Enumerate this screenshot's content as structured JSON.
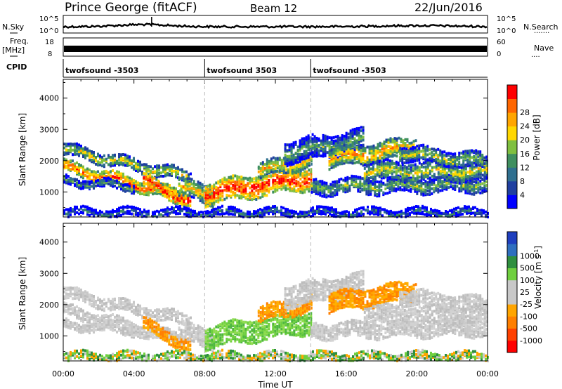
{
  "header": {
    "station": "Prince George (fitACF)",
    "beam": "Beam 12",
    "date": "22/Jun/2016"
  },
  "strip_labels": {
    "nsky": "N.Sky",
    "nsky_ticks": [
      "10^5",
      "10^0"
    ],
    "nsearch": "N.Search",
    "nsearch_ticks": [
      "10^5",
      "10^0"
    ],
    "freq": "Freq.",
    "freq_unit": "[MHz]",
    "freq_ticks": [
      "18",
      "8"
    ],
    "nave": "Nave",
    "nave_ticks": [
      "60",
      "0"
    ],
    "cpid": "CPID"
  },
  "cpid_segments": [
    {
      "label": "twofsound -3503",
      "start_hr": 0
    },
    {
      "label": "twofsound 3503",
      "start_hr": 8
    },
    {
      "label": "twofsound -3503",
      "start_hr": 14
    }
  ],
  "chart_data": [
    {
      "type": "heatmap",
      "name": "power",
      "ylabel": "Slant Range [km]",
      "xlabel": "Time UT",
      "x_ticks": [
        "00:00",
        "04:00",
        "08:00",
        "12:00",
        "16:00",
        "20:00",
        "00:00"
      ],
      "xlim_hr": [
        0,
        24
      ],
      "y_ticks": [
        1000,
        2000,
        3000,
        4000
      ],
      "ylim": [
        200,
        4600
      ],
      "colorbar_label": "Power [dB]",
      "colorbar_ticks": [
        4,
        8,
        12,
        16,
        20,
        24,
        28
      ],
      "colorbar_colors": [
        "#0000ff",
        "#1f3fa0",
        "#2f6f8f",
        "#3f8f5f",
        "#7fbf3f",
        "#ffd700",
        "#ffa500",
        "#ff6600",
        "#ff0000"
      ]
    },
    {
      "type": "heatmap",
      "name": "velocity",
      "ylabel": "Slant Range [km]",
      "xlabel": "Time UT",
      "x_ticks": [
        "00:00",
        "04:00",
        "08:00",
        "12:00",
        "16:00",
        "20:00",
        "00:00"
      ],
      "xlim_hr": [
        0,
        24
      ],
      "y_ticks": [
        1000,
        2000,
        3000,
        4000
      ],
      "ylim": [
        200,
        4600
      ],
      "colorbar_label": "Velocity [m s^-1]",
      "colorbar_ticks": [
        "1000",
        "500",
        "100",
        "25",
        "-25",
        "-100",
        "-500",
        "-1000"
      ],
      "colorbar_colors": [
        "#1f3fbf",
        "#2f6fbf",
        "#2f8f3f",
        "#6fcf3f",
        "#c8c8c8",
        "#c8c8c8",
        "#ffa500",
        "#ff7f00",
        "#ff4000",
        "#ff0000"
      ]
    }
  ]
}
